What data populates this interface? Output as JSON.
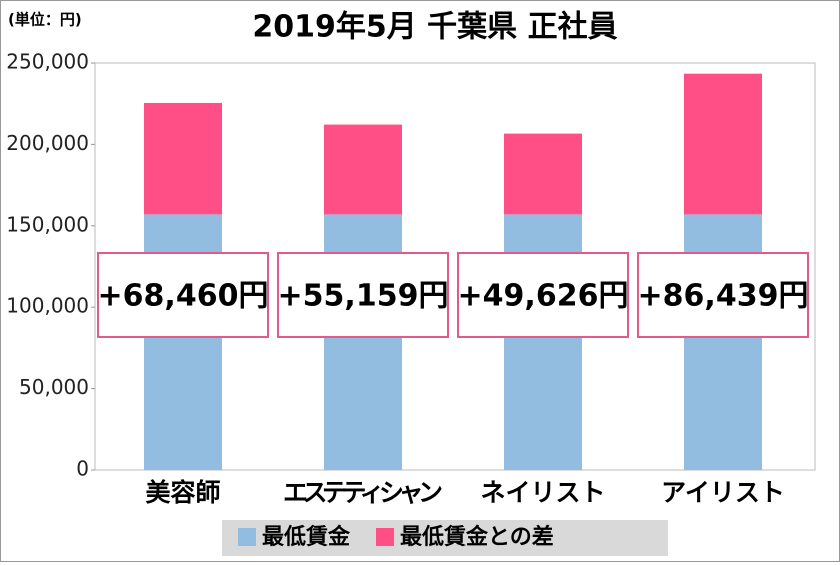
{
  "chart_data": {
    "type": "stacked-bar",
    "title": "2019年5月 千葉県 正社員",
    "unit_note": "(単位：円)",
    "categories": [
      "美容師",
      "エステティシャン",
      "ネイリスト",
      "アイリスト"
    ],
    "series": [
      {
        "name": "最低賃金",
        "color": "#92bde0",
        "values": [
          157000,
          157000,
          157000,
          157000
        ]
      },
      {
        "name": "最低賃金との差",
        "color": "#ff4f86",
        "values": [
          68460,
          55159,
          49626,
          86439
        ],
        "value_labels": [
          "+68,460円",
          "+55,159円",
          "+49,626円",
          "+86,439円"
        ]
      }
    ],
    "ylim": [
      0,
      250000
    ],
    "yticks": [
      0,
      {
        "value": 50000,
        "label": "50,000"
      },
      {
        "value": 100000,
        "label": "100,000"
      },
      {
        "value": 150000,
        "label": "150,000"
      },
      {
        "value": 200000,
        "label": "200,000"
      },
      {
        "value": 250000,
        "label": "250,000"
      }
    ],
    "grid": false,
    "legend": "bottom"
  }
}
